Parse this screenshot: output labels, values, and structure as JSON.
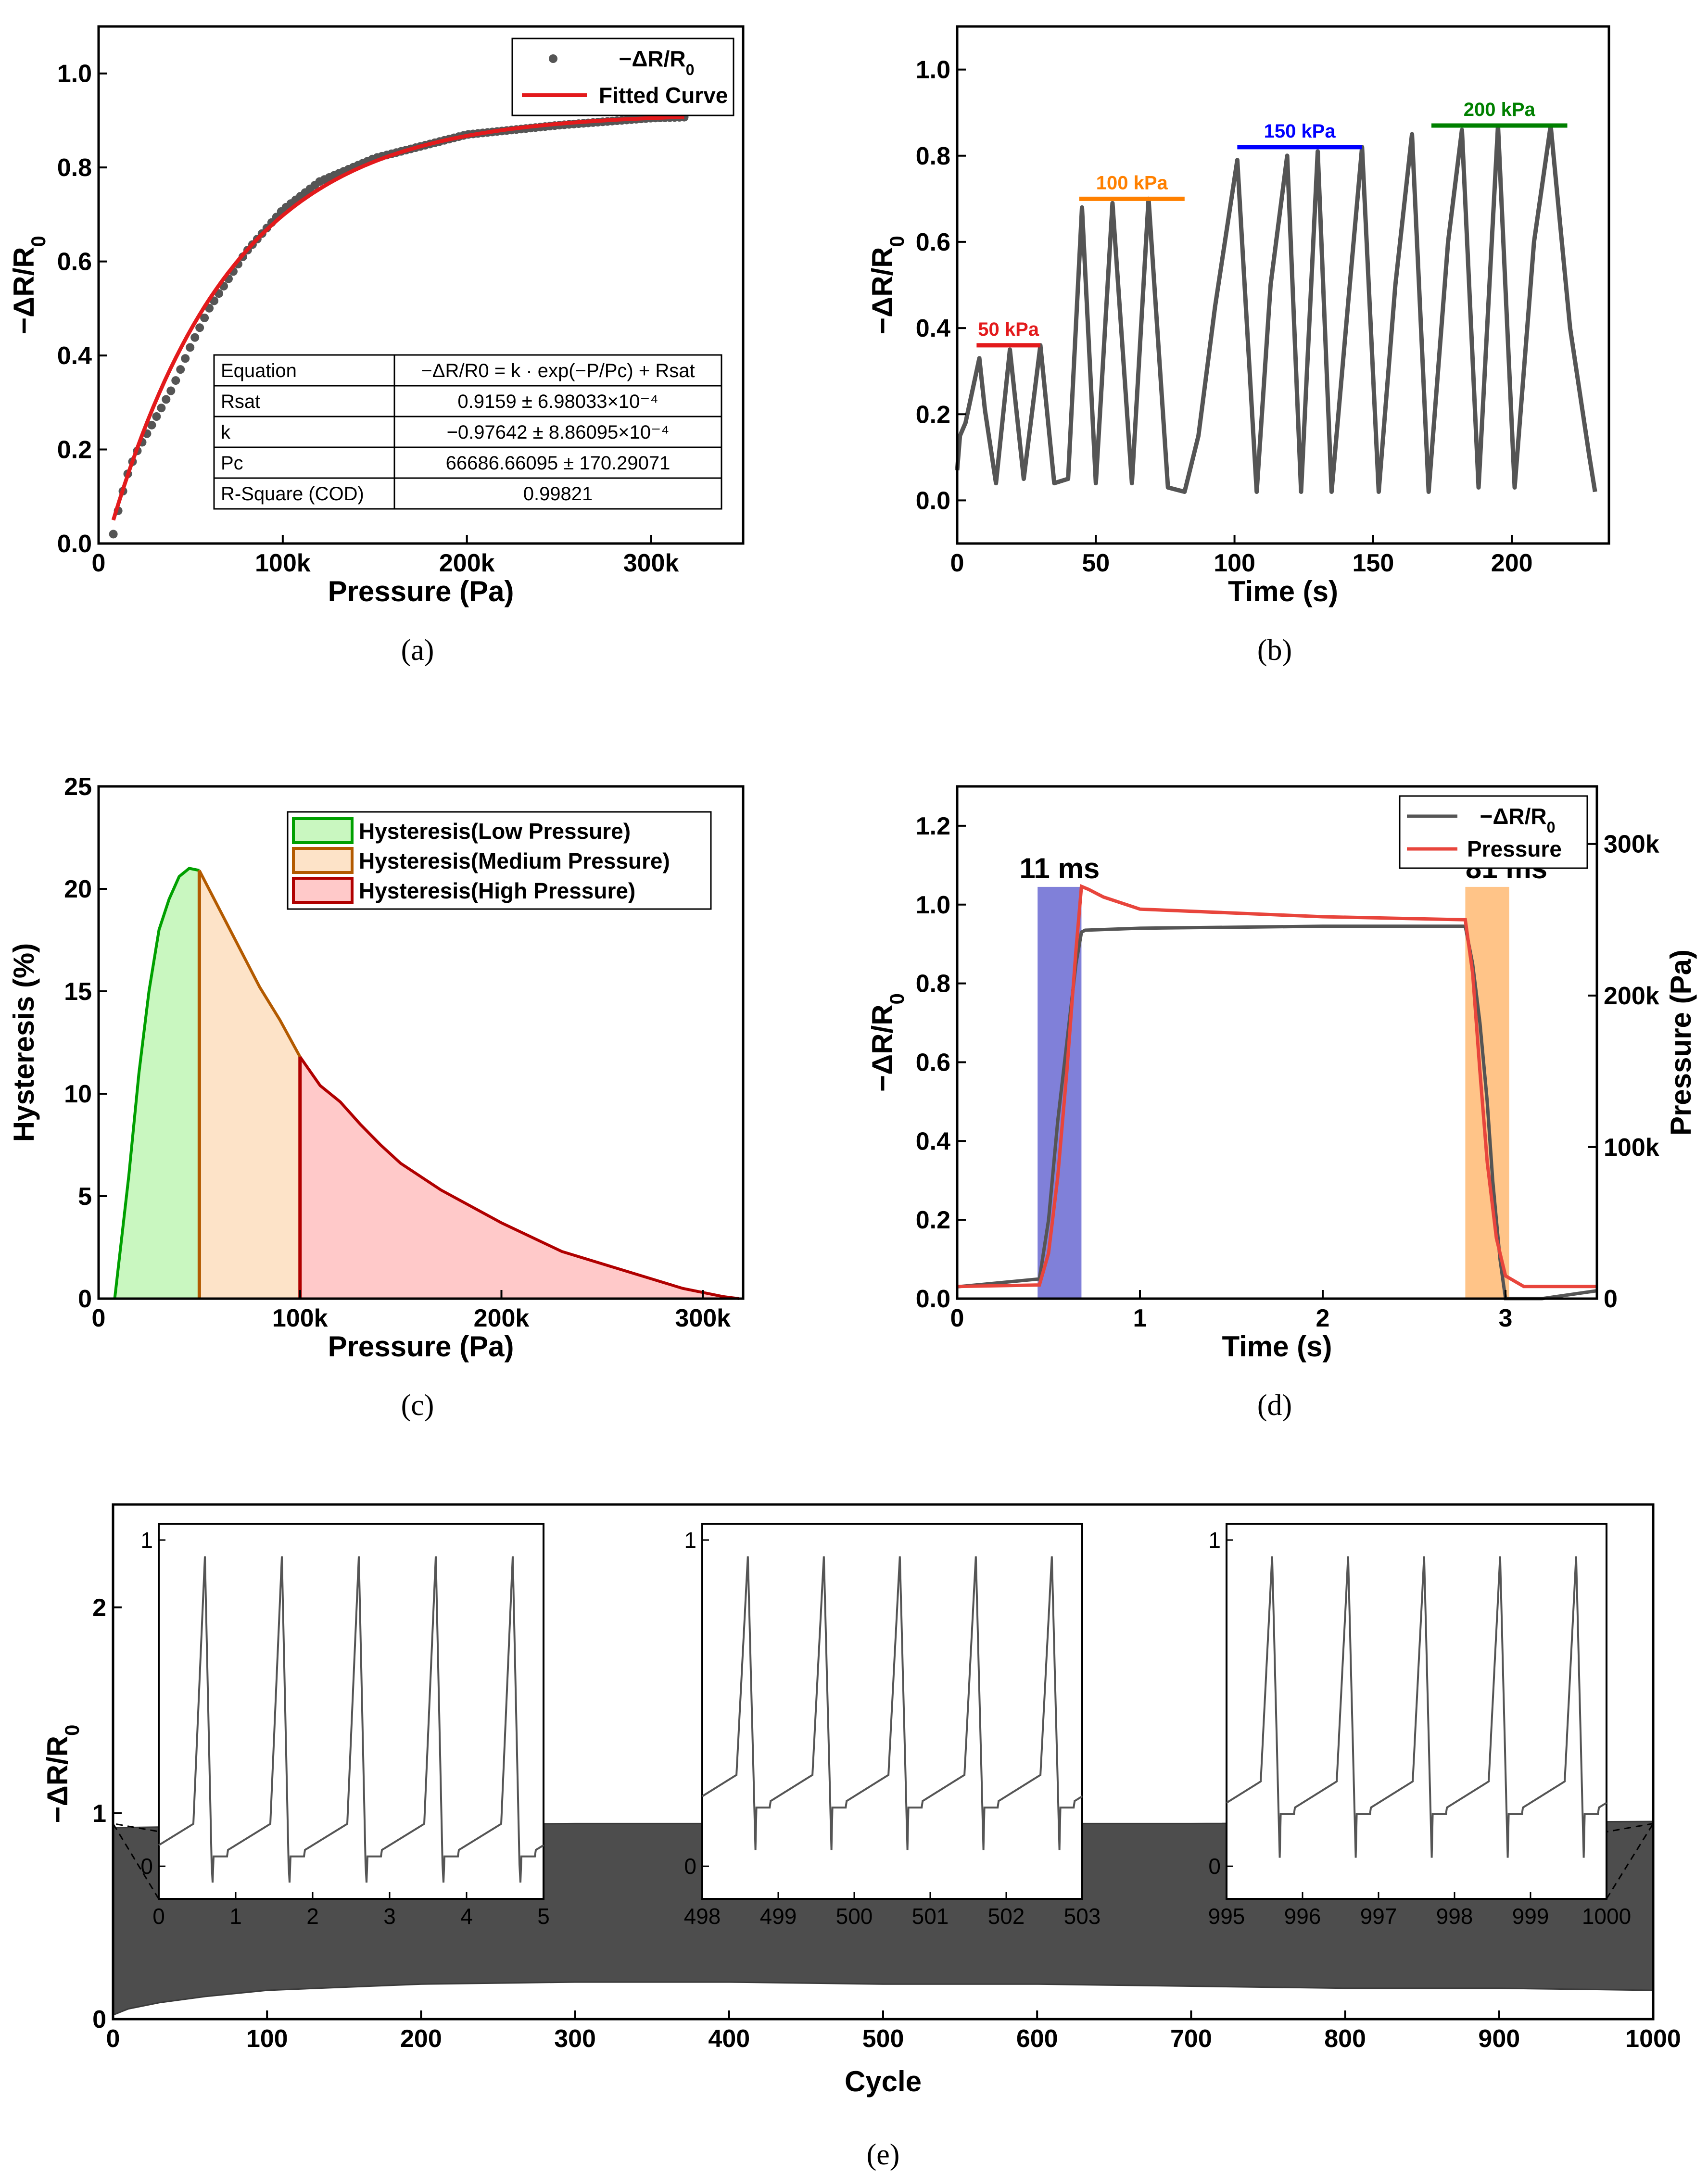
{
  "colors": {
    "data": "#555555",
    "fit": "#e31a1c",
    "p50": "#e31a1c",
    "p100": "#ff8000",
    "p150": "#0000ff",
    "p200": "#008000",
    "low_fill": "#c9f7c0",
    "low_line": "#00a000",
    "med_fill": "#fde3c8",
    "med_line": "#b35a00",
    "high_fill": "#ffc9c9",
    "high_line": "#b00000",
    "rise_fill": "#5555cc",
    "rise_label": "#00008b",
    "fall_fill": "#ffb060",
    "fall_label": "#ff8000",
    "pressure": "#e8453c"
  },
  "captions": [
    "(a)",
    "(b)",
    "(c)",
    "(d)",
    "(e)"
  ],
  "chart_data": [
    {
      "id": "a",
      "type": "scatter",
      "title": "",
      "xlabel": "Pressure (Pa)",
      "ylabel": "−ΔR/R0",
      "ylabel_main": "−ΔR/R",
      "ylabel_sub": "0",
      "xlim": [
        0,
        350000
      ],
      "ylim": [
        0,
        1.1
      ],
      "xticks": [
        0,
        100000,
        200000,
        300000
      ],
      "xtick_labels": [
        "0",
        "100k",
        "200k",
        "300k"
      ],
      "yticks": [
        0,
        0.2,
        0.4,
        0.6,
        0.8,
        1.0
      ],
      "ytick_labels": [
        "0.0",
        "0.2",
        "0.4",
        "0.6",
        "0.8",
        "1.0"
      ],
      "legend": [
        "−ΔR/R0",
        "Fitted Curve"
      ],
      "legend_main": "−ΔR/R",
      "legend_sub": "0",
      "legend_fit": "Fitted Curve",
      "fit_model": {
        "k": -0.97642,
        "Pc": 66686.66095,
        "Rsat": 0.9159,
        "x_range": [
          8000,
          318000
        ]
      },
      "series": [
        {
          "name": "−ΔR/R0",
          "x": [
            8000,
            10000,
            15000,
            20000,
            30000,
            40000,
            50000,
            60000,
            80000,
            100000,
            120000,
            150000,
            200000,
            250000,
            300000,
            318000
          ],
          "y": [
            0.02,
            0.06,
            0.14,
            0.19,
            0.26,
            0.33,
            0.42,
            0.5,
            0.62,
            0.71,
            0.77,
            0.82,
            0.87,
            0.89,
            0.905,
            0.907
          ]
        }
      ],
      "table": {
        "rows": [
          [
            "Equation",
            "−ΔR/R0 = k · exp(−P/Pc) + Rsat"
          ],
          [
            "Rsat",
            "0.9159 ± 6.98033×10⁻⁴"
          ],
          [
            "k",
            "−0.97642 ± 8.86095×10⁻⁴"
          ],
          [
            "Pc",
            "66686.66095 ± 170.29071"
          ],
          [
            "R-Square (COD)",
            "0.99821"
          ]
        ]
      }
    },
    {
      "id": "b",
      "type": "line",
      "xlabel": "Time (s)",
      "ylabel": "−ΔR/R0",
      "ylabel_main": "−ΔR/R",
      "ylabel_sub": "0",
      "xlim": [
        0,
        235
      ],
      "ylim": [
        -0.1,
        1.1
      ],
      "xticks": [
        0,
        50,
        100,
        150,
        200
      ],
      "xtick_labels": [
        "0",
        "50",
        "100",
        "150",
        "200"
      ],
      "yticks": [
        0,
        0.2,
        0.4,
        0.6,
        0.8,
        1.0
      ],
      "ytick_labels": [
        "0.0",
        "0.2",
        "0.4",
        "0.6",
        "0.8",
        "1.0"
      ],
      "series": [
        {
          "name": "−ΔR/R0",
          "x": [
            0,
            1,
            3,
            8,
            10,
            14,
            19,
            24,
            30,
            35,
            40,
            45,
            50,
            56,
            63,
            69,
            76,
            82,
            87,
            93,
            101,
            108,
            113,
            119,
            124,
            130,
            135,
            141,
            146,
            152,
            158,
            164,
            170,
            177,
            182,
            188,
            195,
            201,
            208,
            214,
            221,
            228,
            230
          ],
          "y": [
            0.07,
            0.15,
            0.18,
            0.33,
            0.21,
            0.04,
            0.35,
            0.05,
            0.36,
            0.04,
            0.05,
            0.68,
            0.04,
            0.69,
            0.04,
            0.7,
            0.03,
            0.02,
            0.15,
            0.45,
            0.79,
            0.02,
            0.5,
            0.8,
            0.02,
            0.81,
            0.02,
            0.46,
            0.82,
            0.02,
            0.5,
            0.85,
            0.02,
            0.6,
            0.86,
            0.03,
            0.87,
            0.03,
            0.6,
            0.87,
            0.4,
            0.1,
            0.02
          ]
        }
      ],
      "annotations": [
        {
          "label": "50 kPa",
          "x0": 7,
          "x1": 30,
          "y": 0.36,
          "color_key": "p50"
        },
        {
          "label": "100 kPa",
          "x0": 44,
          "x1": 82,
          "y": 0.7,
          "color_key": "p100"
        },
        {
          "label": "150 kPa",
          "x0": 101,
          "x1": 146,
          "y": 0.82,
          "color_key": "p150"
        },
        {
          "label": "200 kPa",
          "x0": 171,
          "x1": 220,
          "y": 0.87,
          "color_key": "p200"
        }
      ]
    },
    {
      "id": "c",
      "type": "area",
      "xlabel": "Pressure (Pa)",
      "ylabel": "Hysteresis (%)",
      "xlim": [
        0,
        320000
      ],
      "ylim": [
        0,
        25
      ],
      "xticks": [
        0,
        100000,
        200000,
        300000
      ],
      "xtick_labels": [
        "0",
        "100k",
        "200k",
        "300k"
      ],
      "yticks": [
        0,
        5,
        10,
        15,
        20,
        25
      ],
      "ytick_labels": [
        "0",
        "5",
        "10",
        "15",
        "20",
        "25"
      ],
      "x": [
        8000,
        15000,
        20000,
        25000,
        30000,
        35000,
        40000,
        45000,
        50000,
        60000,
        70000,
        80000,
        90000,
        100000,
        110000,
        120000,
        130000,
        140000,
        150000,
        170000,
        200000,
        230000,
        260000,
        290000,
        310000,
        318000
      ],
      "y": [
        0,
        6,
        11,
        15,
        18,
        19.5,
        20.6,
        21.0,
        20.9,
        19.0,
        17.1,
        15.2,
        13.6,
        11.8,
        10.4,
        9.6,
        8.5,
        7.5,
        6.6,
        5.3,
        3.7,
        2.3,
        1.4,
        0.5,
        0.1,
        0
      ],
      "legend": [
        "Hysteresis(Low Pressure)",
        "Hysteresis(Medium Pressure)",
        "Hysteresis(High Pressure)"
      ],
      "regions": [
        {
          "name": "Hysteresis(Low Pressure)",
          "x_range": [
            8000,
            50000
          ],
          "fill_key": "low_fill",
          "line_key": "low_line"
        },
        {
          "name": "Hysteresis(Medium Pressure)",
          "x_range": [
            50000,
            100000
          ],
          "fill_key": "med_fill",
          "line_key": "med_line"
        },
        {
          "name": "Hysteresis(High Pressure)",
          "x_range": [
            100000,
            318000
          ],
          "fill_key": "high_fill",
          "line_key": "high_line"
        }
      ]
    },
    {
      "id": "d",
      "type": "line",
      "xlabel": "Time (s)",
      "ylabel": "−ΔR/R0",
      "ylabel_main": "−ΔR/R",
      "ylabel_sub": "0",
      "y2label": "Pressure (Pa)",
      "xlim": [
        0,
        3.5
      ],
      "ylim": [
        0,
        1.3
      ],
      "y2lim": [
        0,
        338000
      ],
      "xticks": [
        0,
        1,
        2,
        3
      ],
      "xtick_labels": [
        "0",
        "1",
        "2",
        "3"
      ],
      "yticks": [
        0,
        0.2,
        0.4,
        0.6,
        0.8,
        1.0,
        1.2
      ],
      "ytick_labels": [
        "0.0",
        "0.2",
        "0.4",
        "0.6",
        "0.8",
        "1.0",
        "1.2"
      ],
      "y2ticks": [
        0,
        100000,
        200000,
        300000
      ],
      "y2tick_labels": [
        "0",
        "100k",
        "200k",
        "300k"
      ],
      "legend": [
        "−ΔR/R0",
        "Pressure"
      ],
      "legend_main": "−ΔR/R",
      "legend_sub": "0",
      "legend_pressure": "Pressure",
      "series": [
        {
          "name": "−ΔR/R0",
          "x": [
            0,
            0.45,
            0.5,
            0.55,
            0.6,
            0.65,
            0.68,
            0.7,
            1.0,
            2.0,
            2.78,
            2.82,
            2.86,
            2.9,
            2.93,
            2.97,
            3.0,
            3.2,
            3.5
          ],
          "y": [
            0.03,
            0.05,
            0.2,
            0.45,
            0.65,
            0.85,
            0.93,
            0.935,
            0.94,
            0.945,
            0.945,
            0.85,
            0.7,
            0.5,
            0.3,
            0.1,
            0.0,
            0.0,
            0.02
          ]
        },
        {
          "name": "Pressure",
          "x": [
            0,
            0.45,
            0.5,
            0.55,
            0.6,
            0.65,
            0.68,
            0.72,
            0.8,
            1.0,
            2.0,
            2.78,
            2.82,
            2.86,
            2.9,
            2.95,
            3.0,
            3.1,
            3.5
          ],
          "y": [
            8000,
            9000,
            30000,
            80000,
            150000,
            230000,
            272000,
            270000,
            265000,
            257000,
            252000,
            250000,
            215000,
            150000,
            90000,
            40000,
            15000,
            8000,
            8000
          ]
        }
      ],
      "annotations": [
        {
          "label": "11 ms",
          "x0": 0.44,
          "x1": 0.68,
          "fill_key": "rise_fill",
          "label_key": "rise_label"
        },
        {
          "label": "81 ms",
          "x0": 2.78,
          "x1": 3.02,
          "fill_key": "fall_fill",
          "label_key": "fall_label"
        }
      ]
    },
    {
      "id": "e",
      "type": "area",
      "xlabel": "Cycle",
      "ylabel": "−ΔR/R0",
      "ylabel_main": "−ΔR/R",
      "ylabel_sub": "0",
      "xlim": [
        0,
        1000
      ],
      "ylim": [
        0,
        2.5
      ],
      "xticks": [
        0,
        100,
        200,
        300,
        400,
        500,
        600,
        700,
        800,
        900,
        1000
      ],
      "xtick_labels": [
        "0",
        "100",
        "200",
        "300",
        "400",
        "500",
        "600",
        "700",
        "800",
        "900",
        "1000"
      ],
      "yticks": [
        0,
        1,
        2
      ],
      "ytick_labels": [
        "0",
        "1",
        "2"
      ],
      "upper_envelope": {
        "x": [
          0,
          100,
          300,
          500,
          700,
          1000
        ],
        "y": [
          0.93,
          0.94,
          0.95,
          0.95,
          0.95,
          0.96
        ]
      },
      "lower_envelope": {
        "x": [
          0,
          10,
          30,
          60,
          100,
          200,
          300,
          400,
          500,
          600,
          700,
          800,
          900,
          1000
        ],
        "y": [
          0.02,
          0.05,
          0.08,
          0.11,
          0.14,
          0.17,
          0.18,
          0.18,
          0.17,
          0.17,
          0.16,
          0.15,
          0.15,
          0.14
        ]
      },
      "insets": [
        {
          "xlim": [
            0,
            5
          ],
          "xticks": [
            0,
            1,
            2,
            3,
            4,
            5
          ],
          "xtick_labels": [
            "0",
            "1",
            "2",
            "3",
            "4",
            "5"
          ],
          "ytick_labels": [
            "0",
            "1"
          ],
          "base": 0.05,
          "anchor_cycle": 0
        },
        {
          "xlim": [
            498,
            503
          ],
          "xticks": [
            498,
            499,
            500,
            501,
            502,
            503
          ],
          "xtick_labels": [
            "498",
            "499",
            "500",
            "501",
            "502",
            "503"
          ],
          "ytick_labels": [
            "0",
            "1"
          ],
          "base": 0.2,
          "anchor_cycle": 500
        },
        {
          "xlim": [
            995,
            1000
          ],
          "xticks": [
            995,
            996,
            997,
            998,
            999,
            1000
          ],
          "xtick_labels": [
            "995",
            "996",
            "997",
            "998",
            "999",
            "1000"
          ],
          "ytick_labels": [
            "0",
            "1"
          ],
          "base": 0.18,
          "anchor_cycle": 1000
        }
      ]
    }
  ]
}
